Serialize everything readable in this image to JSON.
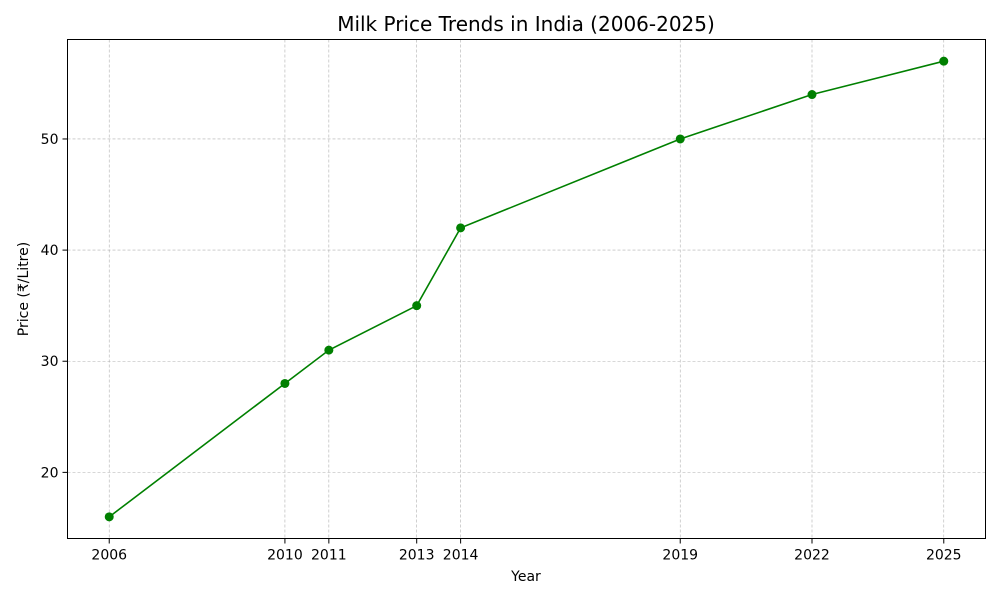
{
  "chart_data": {
    "type": "line",
    "title": "Milk Price Trends in India (2006-2025)",
    "xlabel": "Year",
    "ylabel": "Price (₹/Litre)",
    "x": [
      2006,
      2010,
      2011,
      2013,
      2014,
      2019,
      2022,
      2025
    ],
    "x_tick_labels": [
      "2006",
      "2010",
      "2011",
      "2013",
      "2014",
      "2019",
      "2022",
      "2025"
    ],
    "series": [
      {
        "values": [
          16,
          28,
          31,
          35,
          42,
          50,
          54,
          57
        ],
        "color": "#008000"
      }
    ],
    "y_ticks": [
      20,
      30,
      40,
      50
    ],
    "y_tick_labels": [
      "20",
      "30",
      "40",
      "50"
    ],
    "xlim": [
      2005.05,
      2025.95
    ],
    "ylim": [
      14.05,
      58.95
    ],
    "grid": true,
    "marker": "circle"
  }
}
